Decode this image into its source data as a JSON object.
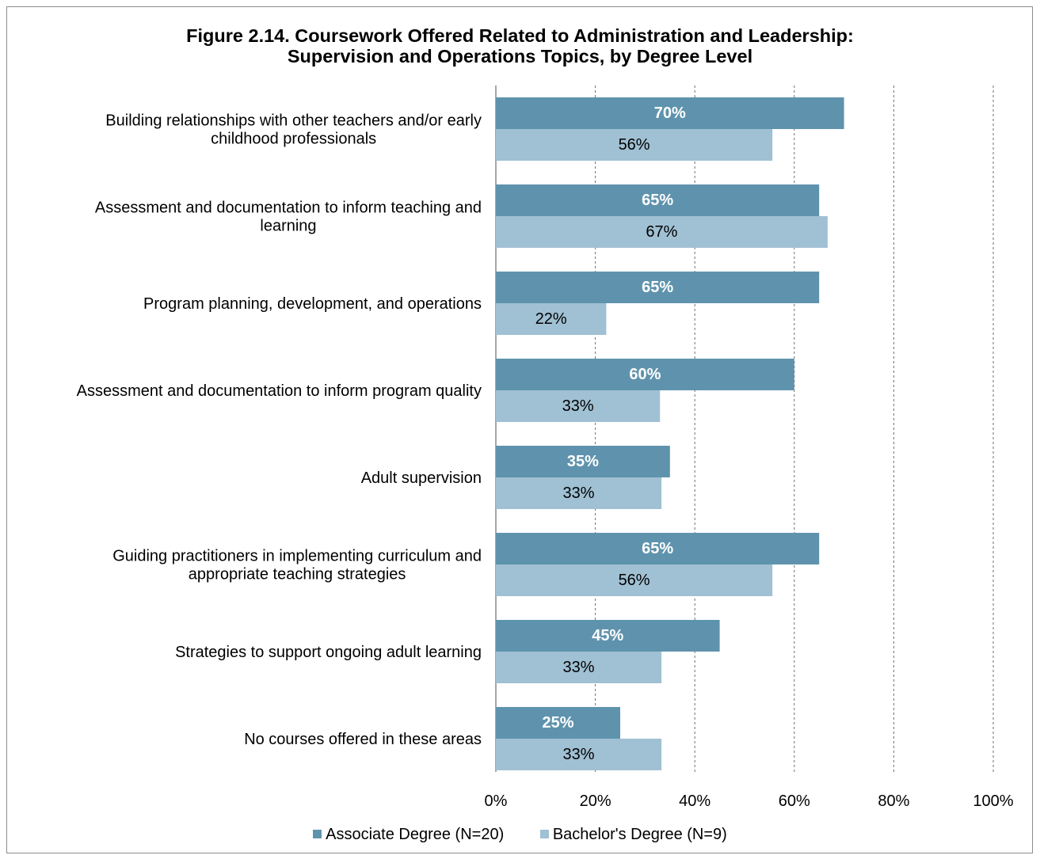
{
  "chart_data": {
    "type": "bar",
    "orientation": "horizontal",
    "title": "Figure 2.14. Coursework Offered Related to Administration and Leadership:",
    "subtitle": "Supervision and Operations Topics, by Degree Level",
    "categories": [
      [
        "Building relationships with other teachers and/or early",
        "childhood professionals"
      ],
      [
        "Assessment and documentation to inform teaching and",
        "learning"
      ],
      [
        "Program planning, development, and operations"
      ],
      [
        "Assessment and documentation to inform program quality"
      ],
      [
        "Adult supervision"
      ],
      [
        "Guiding practitioners in implementing curriculum and",
        "appropriate teaching strategies"
      ],
      [
        "Strategies to support ongoing adult learning"
      ],
      [
        "No courses offered in these areas"
      ]
    ],
    "series": [
      {
        "name": "Associate Degree (N=20)",
        "color": "#5f93ad",
        "values": [
          70,
          65,
          65,
          60,
          35,
          65,
          45,
          25
        ],
        "labels": [
          "70%",
          "65%",
          "65%",
          "60%",
          "35%",
          "65%",
          "45%",
          "25%"
        ]
      },
      {
        "name": "Bachelor's Degree (N=9)",
        "color": "#a0c0d3",
        "values": [
          55.6,
          66.7,
          22.2,
          33,
          33.3,
          55.6,
          33.3,
          33.3
        ],
        "labels": [
          "56%",
          "67%",
          "22%",
          "33%",
          "33%",
          "56%",
          "33%",
          "33%"
        ]
      }
    ],
    "xlim": [
      0,
      100
    ],
    "xticks": [
      "0%",
      "20%",
      "40%",
      "60%",
      "80%",
      "100%"
    ],
    "grid": "vertical dashed",
    "legend_position": "bottom"
  }
}
